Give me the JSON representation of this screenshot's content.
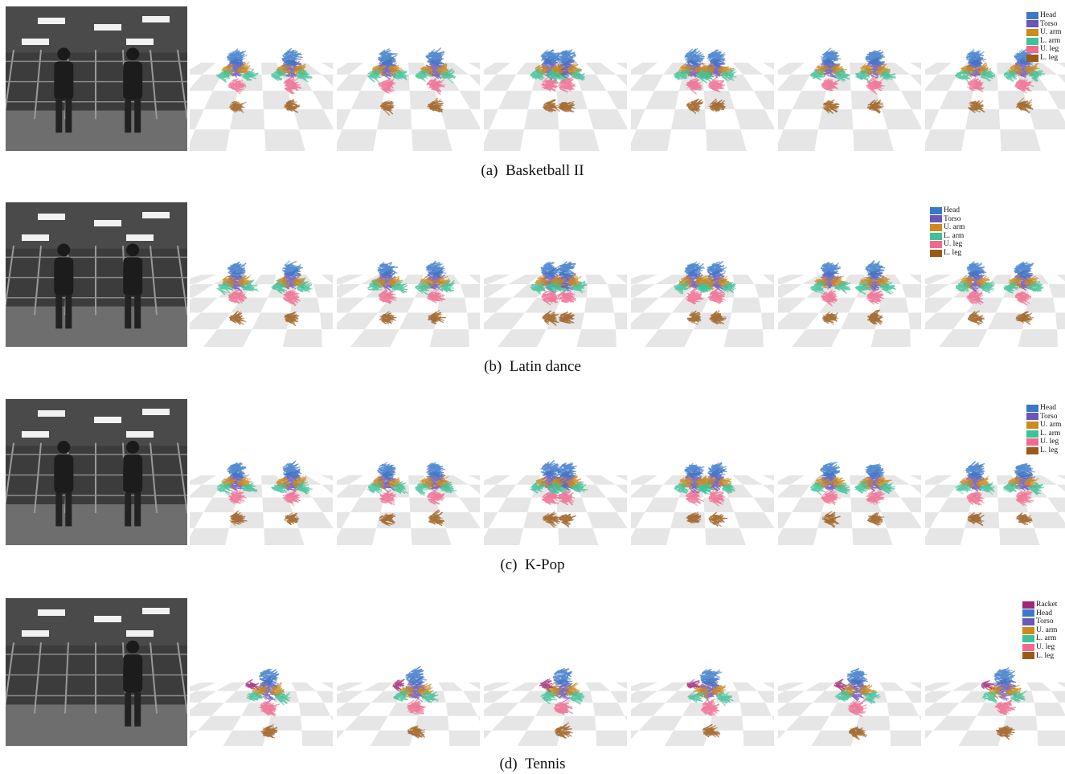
{
  "colors": {
    "Racket": "#a0267a",
    "Head": "#3a78c8",
    "Torso": "#6a57b8",
    "U. arm": "#cc8a1f",
    "L. arm": "#3fc29a",
    "U. leg": "#f06a90",
    "L. leg": "#9a5a18",
    "checker": "#e6e6e6"
  },
  "rows": [
    {
      "id": "a",
      "caption_tag": "(a)",
      "caption_title": "Basketball II",
      "legend": [
        "Head",
        "Torso",
        "U. arm",
        "L. arm",
        "U. leg",
        "L. leg"
      ],
      "people": 2
    },
    {
      "id": "b",
      "caption_tag": "(b)",
      "caption_title": "Latin dance",
      "legend": [
        "Head",
        "Torso",
        "U. arm",
        "L. arm",
        "U. leg",
        "L. leg"
      ],
      "people": 2
    },
    {
      "id": "c",
      "caption_tag": "(c)",
      "caption_title": "K-Pop",
      "legend": [
        "Head",
        "Torso",
        "U. arm",
        "L. arm",
        "U. leg",
        "L. leg"
      ],
      "people": 2
    },
    {
      "id": "d",
      "caption_tag": "(d)",
      "caption_title": "Tennis",
      "legend": [
        "Racket",
        "Head",
        "Torso",
        "U. arm",
        "L. arm",
        "U. leg",
        "L. leg"
      ],
      "people": 1
    }
  ]
}
